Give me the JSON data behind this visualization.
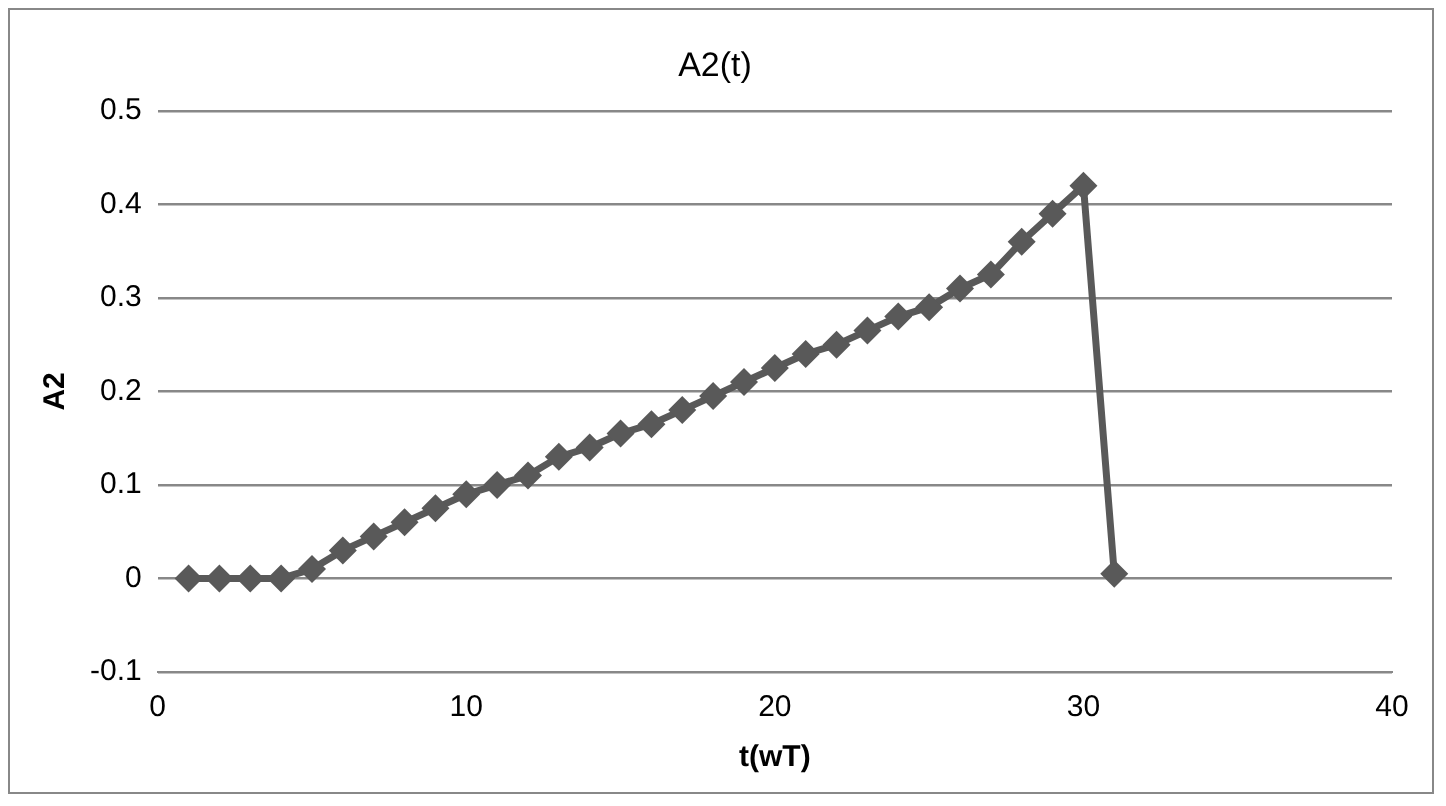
{
  "chart_data": {
    "type": "line",
    "title": "A2(t)",
    "xlabel": "t(wT)",
    "ylabel": "A2",
    "x": [
      1,
      2,
      3,
      4,
      5,
      6,
      7,
      8,
      9,
      10,
      11,
      12,
      13,
      14,
      15,
      16,
      17,
      18,
      19,
      20,
      21,
      22,
      23,
      24,
      25,
      26,
      27,
      28,
      29,
      30,
      31
    ],
    "series": [
      {
        "color": "#595959",
        "values": [
          0,
          0,
          0,
          0,
          0.01,
          0.03,
          0.045,
          0.06,
          0.075,
          0.09,
          0.1,
          0.11,
          0.13,
          0.14,
          0.155,
          0.165,
          0.18,
          0.195,
          0.21,
          0.225,
          0.24,
          0.25,
          0.265,
          0.28,
          0.29,
          0.31,
          0.325,
          0.36,
          0.39,
          0.42,
          0.005
        ]
      }
    ],
    "xlim": [
      0,
      40
    ],
    "xticks": [
      0,
      10,
      20,
      30,
      40
    ],
    "ylim": [
      -0.1,
      0.5
    ],
    "yticks": [
      -0.1,
      0,
      0.1,
      0.2,
      0.3,
      0.4,
      0.5
    ],
    "grid": "y",
    "legend": false,
    "marker": "diamond",
    "line_style": "solid"
  }
}
